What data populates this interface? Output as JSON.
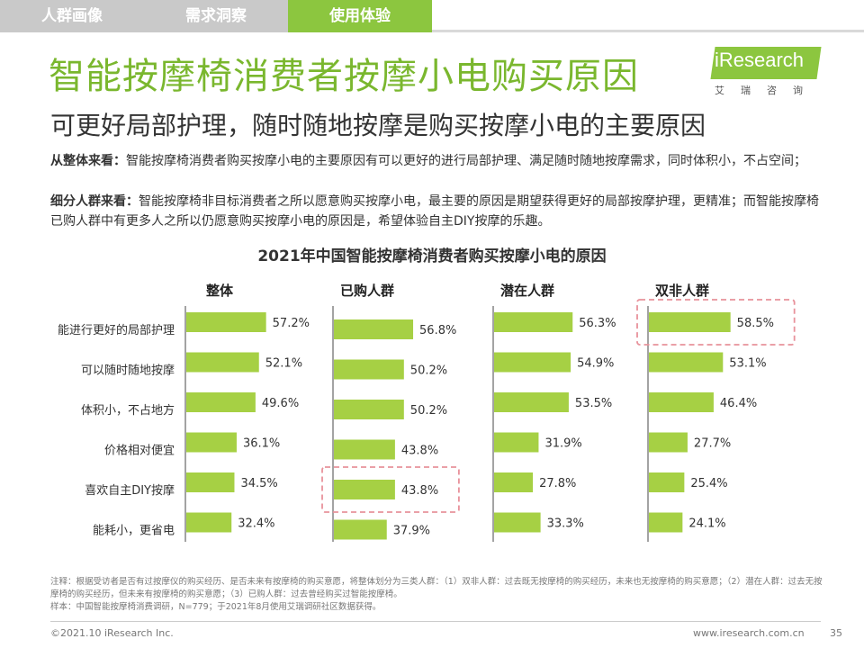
{
  "tabs": [
    "人群画像",
    "需求洞察",
    "使用体验"
  ],
  "active_tab": 2,
  "title": "智能按摩椅消费者按摩小电购买原因",
  "subtitle": "可更好局部护理，随时随地按摩是购买按摩小电的主要原因",
  "logo": {
    "brand": "iResearch",
    "sub": "艾瑞咨询"
  },
  "desc": {
    "p1_label": "从整体来看：",
    "p1_text": "智能按摩椅消费者购买按摩小电的主要原因有可以更好的进行局部护理、满足随时随地按摩需求，同时体积小，不占空间；",
    "p2_label": "细分人群来看：",
    "p2_text": "智能按摩椅非目标消费者之所以愿意购买按摩小电，最主要的原因是期望获得更好的局部按摩护理，更精准；而智能按摩椅已购人群中有更多人之所以仍愿意购买按摩小电的原因是，希望体验自主DIY按摩的乐趣。"
  },
  "chart_title": "2021年中国智能按摩椅消费者购买按摩小电的原因",
  "chart_data": {
    "type": "bar",
    "orientation": "horizontal",
    "title": "2021年中国智能按摩椅消费者购买按摩小电的原因",
    "categories": [
      "能进行更好的局部护理",
      "可以随时随地按摩",
      "体积小，不占地方",
      "价格相对便宜",
      "喜欢自主DIY按摩",
      "能耗小，更省电"
    ],
    "series": [
      {
        "name": "整体",
        "values": [
          57.2,
          52.1,
          49.6,
          36.1,
          34.5,
          32.4
        ]
      },
      {
        "name": "已购人群",
        "values": [
          56.8,
          50.2,
          50.2,
          43.8,
          43.8,
          37.9
        ]
      },
      {
        "name": "潜在人群",
        "values": [
          56.3,
          54.9,
          53.5,
          31.9,
          27.8,
          33.3
        ]
      },
      {
        "name": "双非人群",
        "values": [
          58.5,
          53.1,
          46.4,
          27.7,
          25.4,
          24.1
        ]
      }
    ],
    "unit": "%",
    "bar_color": "#a6d044",
    "highlights": [
      {
        "series": "已购人群",
        "category": "喜欢自主DIY按摩"
      },
      {
        "series": "双非人群",
        "category": "能进行更好的局部护理"
      }
    ],
    "highlight_color": "#e8929b"
  },
  "notes": {
    "line1": "注释：根据受访者是否有过按摩仪的购买经历、是否未来有按摩椅的购买意愿，将整体划分为三类人群：（1）双非人群：过去既无按摩椅的购买经历，未来也无按摩椅的购买意愿；（2）潜在人群：过去无按摩椅的购买经历，但未来有按摩椅的购买意愿；（3）已购人群：过去曾经购买过智能按摩椅。",
    "line2": "样本：中国智能按摩椅消费调研，N=779；于2021年8月使用艾瑞调研社区数据获得。"
  },
  "footer": {
    "left": "©2021.10 iResearch Inc.",
    "right": "www.iresearch.com.cn",
    "page": "35"
  }
}
